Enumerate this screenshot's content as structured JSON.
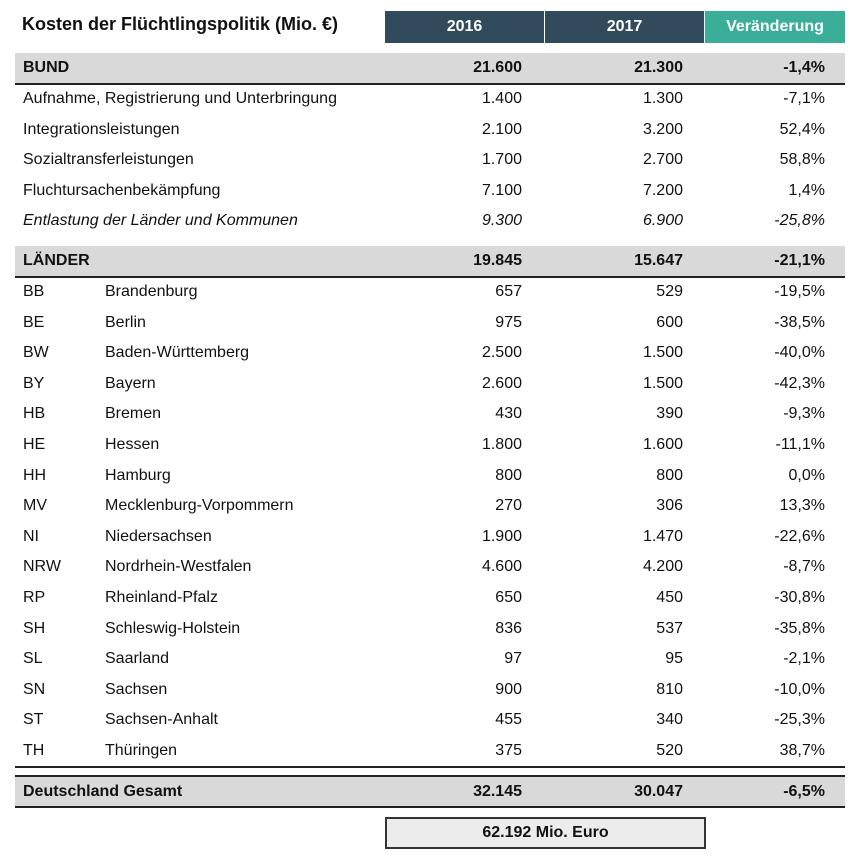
{
  "title": "Kosten der Flüchtlingspolitik (Mio. €)",
  "headers": {
    "y2016": "2016",
    "y2017": "2017",
    "change": "Veränderung"
  },
  "colors": {
    "header_dark": "#324b5c",
    "header_accent": "#3aae98",
    "band": "#d9d9d9"
  },
  "bund": {
    "total": {
      "label": "BUND",
      "v2016": "21.600",
      "v2017": "21.300",
      "change": "-1,4%"
    },
    "items": [
      {
        "label": "Aufnahme, Registrierung und Unterbringung",
        "v2016": "1.400",
        "v2017": "1.300",
        "change": "-7,1%"
      },
      {
        "label": "Integrationsleistungen",
        "v2016": "2.100",
        "v2017": "3.200",
        "change": "52,4%"
      },
      {
        "label": "Sozialtransferleistungen",
        "v2016": "1.700",
        "v2017": "2.700",
        "change": "58,8%"
      },
      {
        "label": "Fluchtursachenbekämpfung",
        "v2016": "7.100",
        "v2017": "7.200",
        "change": "1,4%"
      },
      {
        "label": "Entlastung der Länder und Kommunen",
        "v2016": "9.300",
        "v2017": "6.900",
        "change": "-25,8%",
        "italic": true
      }
    ]
  },
  "laender": {
    "total": {
      "label": "LÄNDER",
      "v2016": "19.845",
      "v2017": "15.647",
      "change": "-21,1%"
    },
    "items": [
      {
        "code": "BB",
        "label": "Brandenburg",
        "v2016": "657",
        "v2017": "529",
        "change": "-19,5%"
      },
      {
        "code": "BE",
        "label": "Berlin",
        "v2016": "975",
        "v2017": "600",
        "change": "-38,5%"
      },
      {
        "code": "BW",
        "label": "Baden-Württemberg",
        "v2016": "2.500",
        "v2017": "1.500",
        "change": "-40,0%"
      },
      {
        "code": "BY",
        "label": "Bayern",
        "v2016": "2.600",
        "v2017": "1.500",
        "change": "-42,3%"
      },
      {
        "code": "HB",
        "label": "Bremen",
        "v2016": "430",
        "v2017": "390",
        "change": "-9,3%"
      },
      {
        "code": "HE",
        "label": "Hessen",
        "v2016": "1.800",
        "v2017": "1.600",
        "change": "-11,1%"
      },
      {
        "code": "HH",
        "label": "Hamburg",
        "v2016": "800",
        "v2017": "800",
        "change": "0,0%"
      },
      {
        "code": "MV",
        "label": "Mecklenburg-Vorpommern",
        "v2016": "270",
        "v2017": "306",
        "change": "13,3%"
      },
      {
        "code": "NI",
        "label": "Niedersachsen",
        "v2016": "1.900",
        "v2017": "1.470",
        "change": "-22,6%"
      },
      {
        "code": "NRW",
        "label": "Nordrhein-Westfalen",
        "v2016": "4.600",
        "v2017": "4.200",
        "change": "-8,7%"
      },
      {
        "code": "RP",
        "label": "Rheinland-Pfalz",
        "v2016": "650",
        "v2017": "450",
        "change": "-30,8%"
      },
      {
        "code": "SH",
        "label": "Schleswig-Holstein",
        "v2016": "836",
        "v2017": "537",
        "change": "-35,8%"
      },
      {
        "code": "SL",
        "label": "Saarland",
        "v2016": "97",
        "v2017": "95",
        "change": "-2,1%"
      },
      {
        "code": "SN",
        "label": "Sachsen",
        "v2016": "900",
        "v2017": "810",
        "change": "-10,0%"
      },
      {
        "code": "ST",
        "label": "Sachsen-Anhalt",
        "v2016": "455",
        "v2017": "340",
        "change": "-25,3%"
      },
      {
        "code": "TH",
        "label": "Thüringen",
        "v2016": "375",
        "v2017": "520",
        "change": "38,7%"
      }
    ]
  },
  "gesamt": {
    "label": "Deutschland Gesamt",
    "v2016": "32.145",
    "v2017": "30.047",
    "change": "-6,5%"
  },
  "sum_box": "62.192 Mio. Euro"
}
